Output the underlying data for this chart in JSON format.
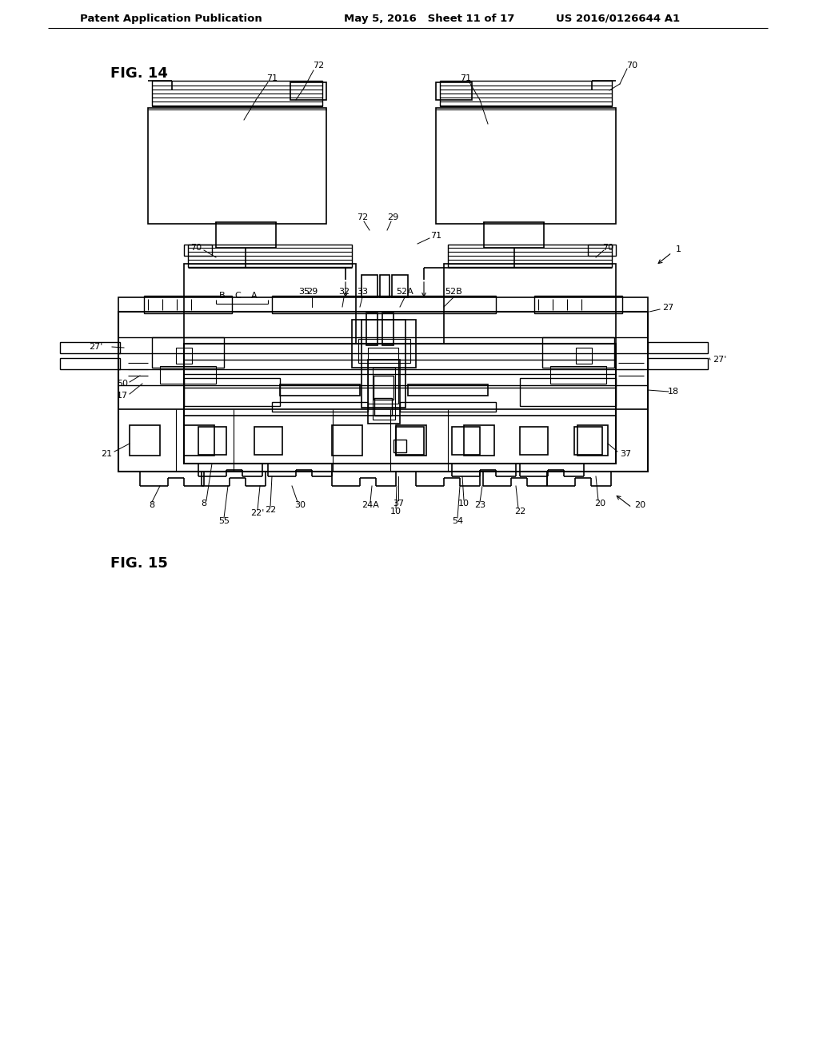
{
  "page_header": {
    "left": "Patent Application Publication",
    "center": "May 5, 2016   Sheet 11 of 17",
    "right": "US 2016/0126644 A1"
  },
  "fig14_label": "FIG. 14",
  "fig15_label": "FIG. 15",
  "background_color": "#ffffff"
}
